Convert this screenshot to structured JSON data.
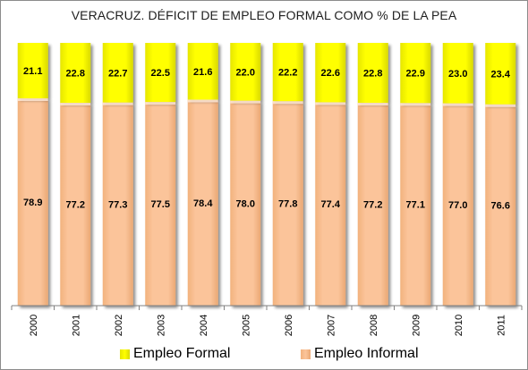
{
  "chart_data": {
    "type": "bar",
    "stacked": true,
    "percent_stacked": true,
    "title": "VERACRUZ. DÉFICIT DE EMPLEO FORMAL COMO % DE LA PEA",
    "xlabel": "",
    "ylabel": "",
    "ylim": [
      0,
      100
    ],
    "grid": false,
    "legend_position": "bottom",
    "categories": [
      "2000",
      "2001",
      "2002",
      "2003",
      "2004",
      "2005",
      "2006",
      "2007",
      "2008",
      "2009",
      "2010",
      "2011"
    ],
    "series": [
      {
        "name": "Empleo Informal",
        "color": "#fac090",
        "values": [
          78.9,
          77.2,
          77.3,
          77.5,
          78.4,
          78.0,
          77.8,
          77.4,
          77.2,
          77.1,
          77.0,
          76.6
        ],
        "labels": [
          "78.9",
          "77.2",
          "77.3",
          "77.5",
          "78.4",
          "78.0",
          "77.8",
          "77.4",
          "77.2",
          "77.1",
          "77.0",
          "76.6"
        ]
      },
      {
        "name": "Empleo Formal",
        "color": "#ffff00",
        "values": [
          21.1,
          22.8,
          22.7,
          22.5,
          21.6,
          22.0,
          22.2,
          22.6,
          22.8,
          22.9,
          23.0,
          23.4
        ],
        "labels": [
          "21.1",
          "22.8",
          "22.7",
          "22.5",
          "21.6",
          "22.0",
          "22.2",
          "22.6",
          "22.8",
          "22.9",
          "23.0",
          "23.4"
        ]
      }
    ],
    "legend": [
      "Empleo Formal",
      "Empleo Informal"
    ]
  }
}
